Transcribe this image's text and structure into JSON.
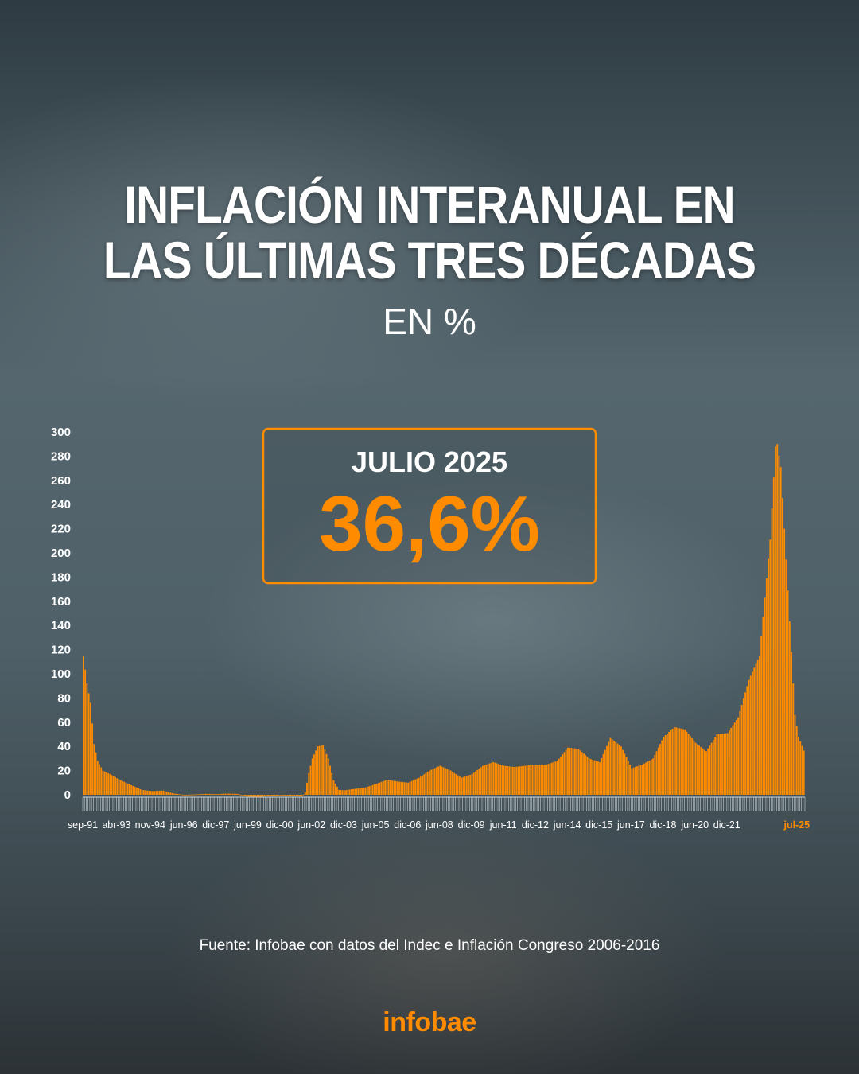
{
  "header": {
    "title_line1": "INFLACIÓN INTERANUAL EN",
    "title_line2": "LAS ÚLTIMAS TRES DÉCADAS",
    "subtitle": "EN %"
  },
  "highlight": {
    "label": "JULIO 2025",
    "value": "36,6%"
  },
  "footer": {
    "source": "Fuente: Infobae con datos del Indec e Inflación Congreso 2006-2016",
    "logo": "infobae"
  },
  "colors": {
    "bar": "#ff8c00",
    "highlight": "#ff8c00",
    "text": "#ffffff"
  },
  "chart_data": {
    "type": "bar",
    "x_start": "sep-91",
    "x_end": "jul-25",
    "ylim": [
      0,
      300
    ],
    "yticks": [
      0,
      20,
      40,
      60,
      80,
      100,
      120,
      140,
      160,
      180,
      200,
      220,
      240,
      260,
      280,
      300
    ],
    "xtick_labels": [
      "sep-91",
      "abr-93",
      "nov-94",
      "jun-96",
      "dic-97",
      "jun-99",
      "dic-00",
      "jun-02",
      "dic-03",
      "jun-05",
      "dic-06",
      "jun-08",
      "dic-09",
      "jun-11",
      "dic-12",
      "jun-14",
      "dic-15",
      "jun-17",
      "dic-18",
      "jun-20",
      "dic-21",
      "jul-25"
    ],
    "highlighted_tick": "jul-25",
    "grid": false,
    "series_shape_points": [
      [
        "sep-91",
        115
      ],
      [
        "nov-91",
        92
      ],
      [
        "ene-92",
        76
      ],
      [
        "mar-92",
        42
      ],
      [
        "may-92",
        28
      ],
      [
        "ago-92",
        20
      ],
      [
        "dic-92",
        17
      ],
      [
        "jun-93",
        12
      ],
      [
        "dic-93",
        8
      ],
      [
        "jun-94",
        4
      ],
      [
        "dic-94",
        3
      ],
      [
        "jun-95",
        3.5
      ],
      [
        "dic-95",
        1
      ],
      [
        "jun-96",
        0
      ],
      [
        "dic-96",
        0.3
      ],
      [
        "jun-97",
        0.8
      ],
      [
        "dic-97",
        0.5
      ],
      [
        "jun-98",
        1
      ],
      [
        "dic-98",
        0.7
      ],
      [
        "jun-99",
        -1.5
      ],
      [
        "dic-99",
        -1.8
      ],
      [
        "jun-00",
        -1
      ],
      [
        "dic-00",
        -0.5
      ],
      [
        "jun-01",
        -0.7
      ],
      [
        "dic-01",
        -1.5
      ],
      [
        "feb-02",
        2
      ],
      [
        "abr-02",
        18
      ],
      [
        "jun-02",
        30
      ],
      [
        "sep-02",
        40
      ],
      [
        "dic-02",
        41
      ],
      [
        "mar-03",
        30
      ],
      [
        "jun-03",
        12
      ],
      [
        "sep-03",
        4
      ],
      [
        "dic-03",
        3.7
      ],
      [
        "jun-04",
        4.9
      ],
      [
        "dic-04",
        6.1
      ],
      [
        "jun-05",
        9
      ],
      [
        "dic-05",
        12.3
      ],
      [
        "jun-06",
        11
      ],
      [
        "dic-06",
        10
      ],
      [
        "jun-07",
        14
      ],
      [
        "dic-07",
        20
      ],
      [
        "jun-08",
        24
      ],
      [
        "dic-08",
        20
      ],
      [
        "jun-09",
        14
      ],
      [
        "dic-09",
        17
      ],
      [
        "jun-10",
        24
      ],
      [
        "dic-10",
        27
      ],
      [
        "jun-11",
        24
      ],
      [
        "dic-11",
        23
      ],
      [
        "jun-12",
        24
      ],
      [
        "dic-12",
        25
      ],
      [
        "jun-13",
        25
      ],
      [
        "dic-13",
        28
      ],
      [
        "jun-14",
        39
      ],
      [
        "dic-14",
        38
      ],
      [
        "jun-15",
        30
      ],
      [
        "dic-15",
        27
      ],
      [
        "jun-16",
        47
      ],
      [
        "dic-16",
        40
      ],
      [
        "jun-17",
        22
      ],
      [
        "dic-17",
        25
      ],
      [
        "jun-18",
        30
      ],
      [
        "dic-18",
        48
      ],
      [
        "jun-19",
        56
      ],
      [
        "dic-19",
        54
      ],
      [
        "jun-20",
        43
      ],
      [
        "dic-20",
        36
      ],
      [
        "jun-21",
        50
      ],
      [
        "dic-21",
        51
      ],
      [
        "jun-22",
        64
      ],
      [
        "dic-22",
        95
      ],
      [
        "jun-23",
        115
      ],
      [
        "dic-23",
        211
      ],
      [
        "mar-24",
        288
      ],
      [
        "abr-24",
        290
      ],
      [
        "jun-24",
        271
      ],
      [
        "dic-24",
        118
      ],
      [
        "feb-25",
        66
      ],
      [
        "abr-25",
        48
      ],
      [
        "jul-25",
        36.6
      ]
    ]
  }
}
